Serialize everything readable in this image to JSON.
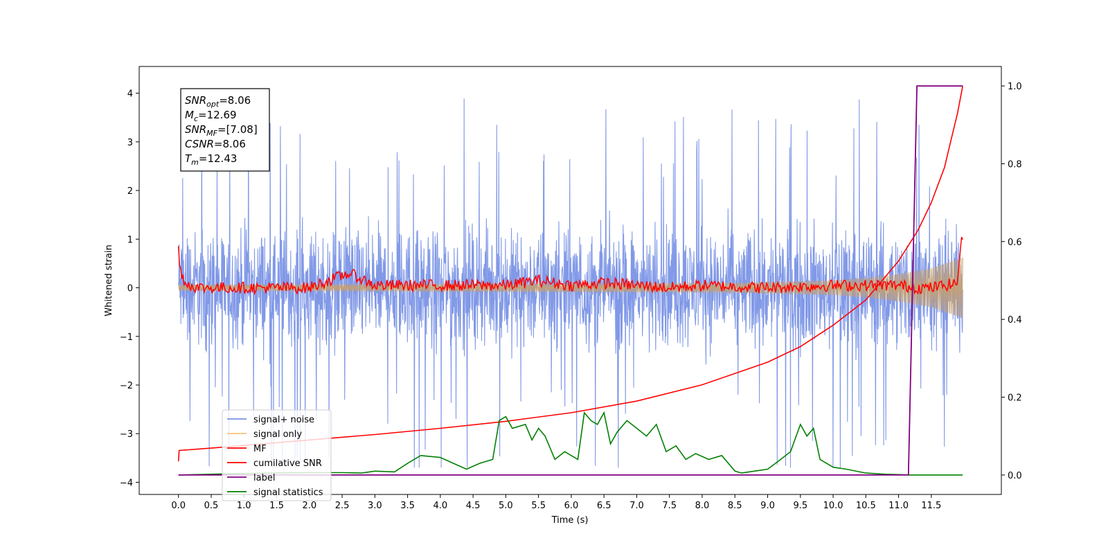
{
  "chart_data": {
    "type": "line",
    "xlabel": "Time (s)",
    "ylabel": "Whitened strain",
    "xlim": [
      -0.6,
      12.57
    ],
    "ylim": [
      -4.25,
      4.55
    ],
    "y2lim": [
      -0.05,
      1.05
    ],
    "xticks": [
      0.0,
      0.5,
      1.0,
      1.5,
      2.0,
      2.5,
      3.0,
      3.5,
      4.0,
      4.5,
      5.0,
      5.5,
      6.0,
      6.5,
      7.0,
      7.5,
      8.0,
      8.5,
      9.0,
      9.5,
      10.0,
      10.5,
      11.0,
      11.5
    ],
    "xtick_labels": [
      "0.0",
      "0.5",
      "1.0",
      "1.5",
      "2.0",
      "2.5",
      "3.0",
      "3.5",
      "4.0",
      "4.5",
      "5.0",
      "5.5",
      "6.0",
      "6.5",
      "7.0",
      "7.5",
      "8.0",
      "8.5",
      "9.0",
      "9.5",
      "10.0",
      "10.5",
      "11.0",
      "11.5"
    ],
    "yticks": [
      -4,
      -3,
      -2,
      -1,
      0,
      1,
      2,
      3,
      4
    ],
    "ytick_labels": [
      "−4",
      "−3",
      "−2",
      "−1",
      "0",
      "1",
      "2",
      "3",
      "4"
    ],
    "y2ticks": [
      0.0,
      0.2,
      0.4,
      0.6,
      0.8,
      1.0
    ],
    "y2tick_labels": [
      "0.0",
      "0.2",
      "0.4",
      "0.6",
      "0.8",
      "1.0"
    ],
    "grid": false,
    "legend_position": "lower-left",
    "annotation": {
      "lines": [
        {
          "sym": "SNR",
          "sub": "opt",
          "val": "=8.06"
        },
        {
          "sym": "M",
          "sub": "c",
          "val": "=12.69"
        },
        {
          "sym": "SNR",
          "sub": "MF",
          "val": "=[7.08]"
        },
        {
          "sym": "CSNR",
          "sub": "",
          "val": "=8.06"
        },
        {
          "sym": "T",
          "sub": "m",
          "val": "=12.43"
        }
      ]
    },
    "series": [
      {
        "name": "signal+ noise",
        "color": "#7a93e6",
        "axis": "left",
        "kind": "noise_band",
        "x_range": [
          0.0,
          11.98
        ],
        "typical_range": [
          -1.6,
          1.6
        ],
        "peaks_max": 4.17,
        "peaks_min": -3.7
      },
      {
        "name": "signal only",
        "color": "#f5c27a",
        "axis": "left",
        "kind": "chirp_envelope",
        "x_range": [
          0.0,
          11.98
        ],
        "envelope": [
          [
            0.0,
            0.06
          ],
          [
            8.5,
            0.1
          ],
          [
            10.0,
            0.15
          ],
          [
            10.5,
            0.2
          ],
          [
            11.0,
            0.28
          ],
          [
            11.5,
            0.4
          ],
          [
            11.98,
            0.62
          ]
        ]
      },
      {
        "name": "MF",
        "color": "#ff0000",
        "axis": "left",
        "kind": "noisy_line",
        "x": [
          0.0,
          0.02,
          0.05,
          0.1,
          0.2,
          0.3,
          0.5,
          1.0,
          2.0,
          2.6,
          3.0,
          4.0,
          4.5,
          5.0,
          5.5,
          6.0,
          6.5,
          7.0,
          7.5,
          8.0,
          9.0,
          10.0,
          11.0,
          11.3,
          11.5,
          11.9,
          11.95,
          11.98
        ],
        "y": [
          0.9,
          0.35,
          0.3,
          0.1,
          0.05,
          0.0,
          0.0,
          0.0,
          0.0,
          0.3,
          0.05,
          0.05,
          0.05,
          0.05,
          0.15,
          0.05,
          0.1,
          0.05,
          0.0,
          0.05,
          0.0,
          0.05,
          0.05,
          0.0,
          0.0,
          0.1,
          0.95,
          0.9
        ]
      },
      {
        "name": "cumilative SNR",
        "color": "#ff0000",
        "axis": "right",
        "kind": "line",
        "x": [
          0.0,
          0.01,
          0.5,
          1.0,
          2.0,
          3.0,
          4.0,
          5.0,
          6.0,
          7.0,
          8.0,
          9.0,
          9.5,
          10.0,
          10.5,
          11.0,
          11.3,
          11.5,
          11.7,
          11.8,
          11.9,
          11.98
        ],
        "y": [
          0.035,
          0.063,
          0.069,
          0.076,
          0.09,
          0.104,
          0.12,
          0.138,
          0.16,
          0.19,
          0.232,
          0.29,
          0.33,
          0.385,
          0.45,
          0.55,
          0.63,
          0.7,
          0.79,
          0.86,
          0.93,
          1.0
        ]
      },
      {
        "name": "label",
        "color": "#800080",
        "axis": "right",
        "kind": "line",
        "x": [
          0.0,
          11.15,
          11.28,
          11.98
        ],
        "y": [
          0.0,
          0.0,
          1.0,
          1.0
        ]
      },
      {
        "name": "signal statistics",
        "color": "#008000",
        "axis": "right",
        "kind": "line",
        "x": [
          0.0,
          0.5,
          1.0,
          1.5,
          2.0,
          2.5,
          2.8,
          3.0,
          3.3,
          3.5,
          3.7,
          4.0,
          4.2,
          4.4,
          4.6,
          4.8,
          4.9,
          5.0,
          5.1,
          5.3,
          5.4,
          5.5,
          5.6,
          5.75,
          5.9,
          6.0,
          6.1,
          6.2,
          6.3,
          6.4,
          6.5,
          6.6,
          6.7,
          6.85,
          7.0,
          7.15,
          7.3,
          7.45,
          7.6,
          7.75,
          7.9,
          8.1,
          8.3,
          8.5,
          8.6,
          8.8,
          9.0,
          9.2,
          9.35,
          9.5,
          9.6,
          9.7,
          9.8,
          10.0,
          10.2,
          10.5,
          10.8,
          11.0,
          11.2,
          11.5,
          11.98
        ],
        "y": [
          0.0,
          0.002,
          0.004,
          0.005,
          0.006,
          0.006,
          0.005,
          0.01,
          0.008,
          0.03,
          0.05,
          0.045,
          0.03,
          0.015,
          0.03,
          0.04,
          0.14,
          0.15,
          0.12,
          0.13,
          0.09,
          0.12,
          0.1,
          0.04,
          0.06,
          0.05,
          0.04,
          0.16,
          0.14,
          0.13,
          0.16,
          0.08,
          0.11,
          0.14,
          0.12,
          0.1,
          0.13,
          0.06,
          0.075,
          0.04,
          0.055,
          0.04,
          0.05,
          0.01,
          0.005,
          0.01,
          0.015,
          0.04,
          0.06,
          0.13,
          0.1,
          0.12,
          0.04,
          0.02,
          0.015,
          0.005,
          0.002,
          0.001,
          0.0,
          0.0,
          0.0
        ]
      }
    ]
  }
}
